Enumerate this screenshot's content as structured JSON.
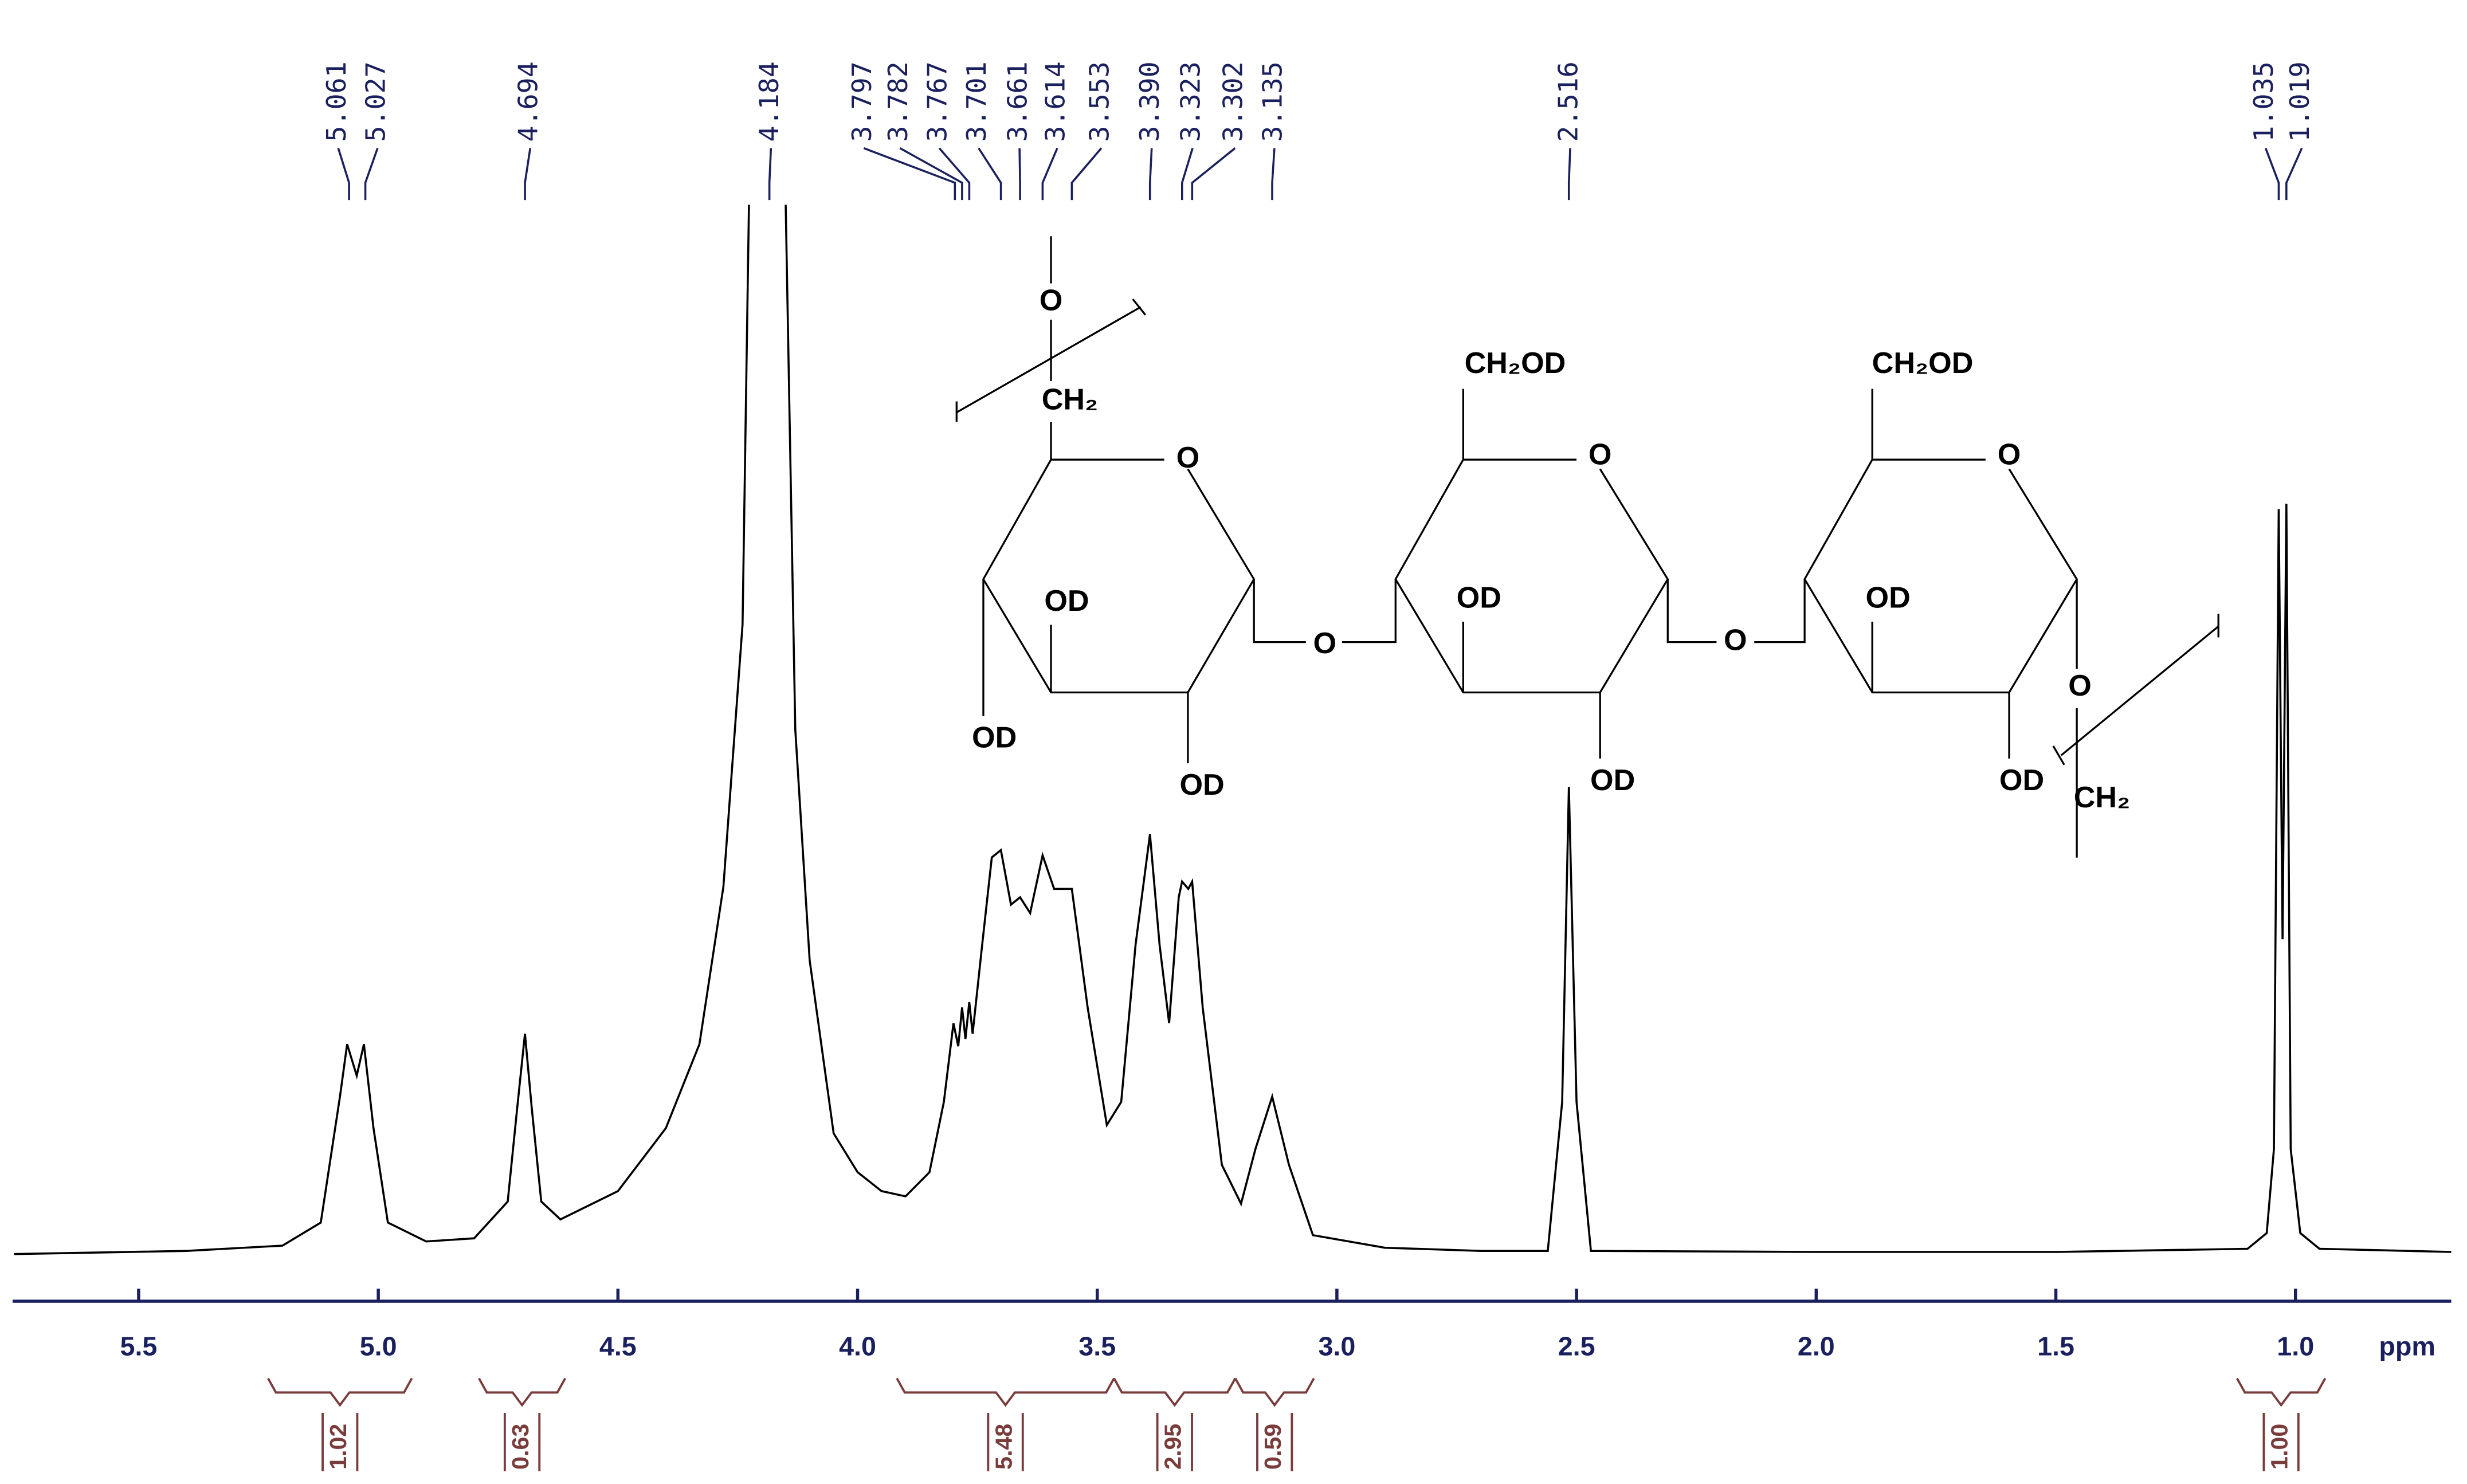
{
  "chart_data": {
    "type": "line",
    "x_label": "ppm",
    "xlim": [
      5.763,
      0.675
    ],
    "xticks": [
      5.5,
      {
        "value": 5,
        "label": "5.0"
      },
      4.5,
      {
        "value": 4,
        "label": "4.0"
      },
      3.5,
      {
        "value": 3,
        "label": "3.0"
      },
      2.5,
      {
        "value": 2,
        "label": "2.0"
      },
      1.5,
      {
        "value": 1,
        "label": "1.0"
      }
    ],
    "ylim": [
      0,
      100
    ],
    "x": [
      5.76,
      5.4,
      5.2,
      5.12,
      5.08,
      5.065,
      5.045,
      5.03,
      5.01,
      4.98,
      4.9,
      4.8,
      4.73,
      4.71,
      4.694,
      4.68,
      4.66,
      4.62,
      4.5,
      4.4,
      4.33,
      4.28,
      4.24,
      4.22,
      4.184,
      4.15,
      4.13,
      4.1,
      4.05,
      4.0,
      3.95,
      3.9,
      3.85,
      3.82,
      3.8,
      3.79,
      3.782,
      3.775,
      3.767,
      3.76,
      3.74,
      3.72,
      3.701,
      3.68,
      3.661,
      3.64,
      3.614,
      3.59,
      3.553,
      3.52,
      3.48,
      3.45,
      3.42,
      3.39,
      3.37,
      3.35,
      3.33,
      3.323,
      3.31,
      3.302,
      3.28,
      3.24,
      3.2,
      3.17,
      3.135,
      3.1,
      3.05,
      2.9,
      2.7,
      2.56,
      2.53,
      2.516,
      2.5,
      2.47,
      2.0,
      1.5,
      1.1,
      1.06,
      1.045,
      1.035,
      1.027,
      1.019,
      1.01,
      0.99,
      0.95,
      0.675
    ],
    "series": [
      {
        "color": "#000000",
        "values": [
          0,
          0.3,
          0.8,
          3,
          15,
          20,
          17,
          20,
          12,
          3,
          1.2,
          1.5,
          5,
          14,
          21,
          14,
          5,
          3.3,
          6,
          12,
          20,
          35,
          60,
          120,
          140,
          100,
          50,
          28,
          11.5,
          7.8,
          6,
          5.5,
          7.8,
          14.5,
          22,
          19.8,
          23.5,
          20.5,
          24,
          21,
          29.5,
          37.8,
          38.5,
          33.3,
          34,
          32.5,
          38,
          34.8,
          34.8,
          23.5,
          12.3,
          14.5,
          29.5,
          40,
          29.5,
          22,
          34,
          35.5,
          34.8,
          35.5,
          23.5,
          8.5,
          4.8,
          10,
          15,
          8.5,
          1.8,
          0.6,
          0.3,
          0.3,
          14.5,
          44.5,
          14.5,
          0.3,
          0.2,
          0.2,
          0.5,
          2,
          10,
          71,
          30,
          71.5,
          10,
          2,
          0.5,
          0.2
        ]
      }
    ],
    "peak_labels": [
      {
        "value": 5.061,
        "label": "5.061"
      },
      {
        "value": 5.027,
        "label": "5.027"
      },
      {
        "value": 4.694,
        "label": "4.694"
      },
      {
        "value": 4.184,
        "label": "4.184"
      },
      {
        "value": 3.797,
        "label": "3.797"
      },
      {
        "value": 3.782,
        "label": "3.782"
      },
      {
        "value": 3.767,
        "label": "3.767"
      },
      {
        "value": 3.701,
        "label": "3.701"
      },
      {
        "value": 3.661,
        "label": "3.661"
      },
      {
        "value": 3.614,
        "label": "3.614"
      },
      {
        "value": 3.553,
        "label": "3.553"
      },
      {
        "value": 3.39,
        "label": "3.390"
      },
      {
        "value": 3.323,
        "label": "3.323"
      },
      {
        "value": 3.302,
        "label": "3.302"
      },
      {
        "value": 3.135,
        "label": "3.135"
      },
      {
        "value": 2.516,
        "label": "2.516"
      },
      {
        "value": 1.035,
        "label": "1.035"
      },
      {
        "value": 1.019,
        "label": "1.019"
      }
    ],
    "integrals": {
      "values": [
        1.02,
        0.63,
        5.48,
        2.95,
        0.59,
        1
      ],
      "value_labels": [
        "1.02",
        "0.63",
        "5.48",
        "2.95",
        "0.59",
        "1.00"
      ],
      "ranges": [
        [
          5.23,
          4.93
        ],
        [
          4.79,
          4.61
        ],
        [
          3.918,
          3.465
        ],
        [
          3.465,
          3.212
        ],
        [
          3.212,
          3.048
        ],
        [
          1.122,
          0.938
        ]
      ]
    }
  },
  "structure": {
    "labels": [
      "O",
      "CH₂",
      "O",
      "OD",
      "OD",
      "OD",
      "O",
      "CH₂OD",
      "O",
      "OD",
      "OD",
      "O",
      "CH₂OD",
      "O",
      "OD",
      "OD",
      "O",
      "CH₂"
    ]
  }
}
